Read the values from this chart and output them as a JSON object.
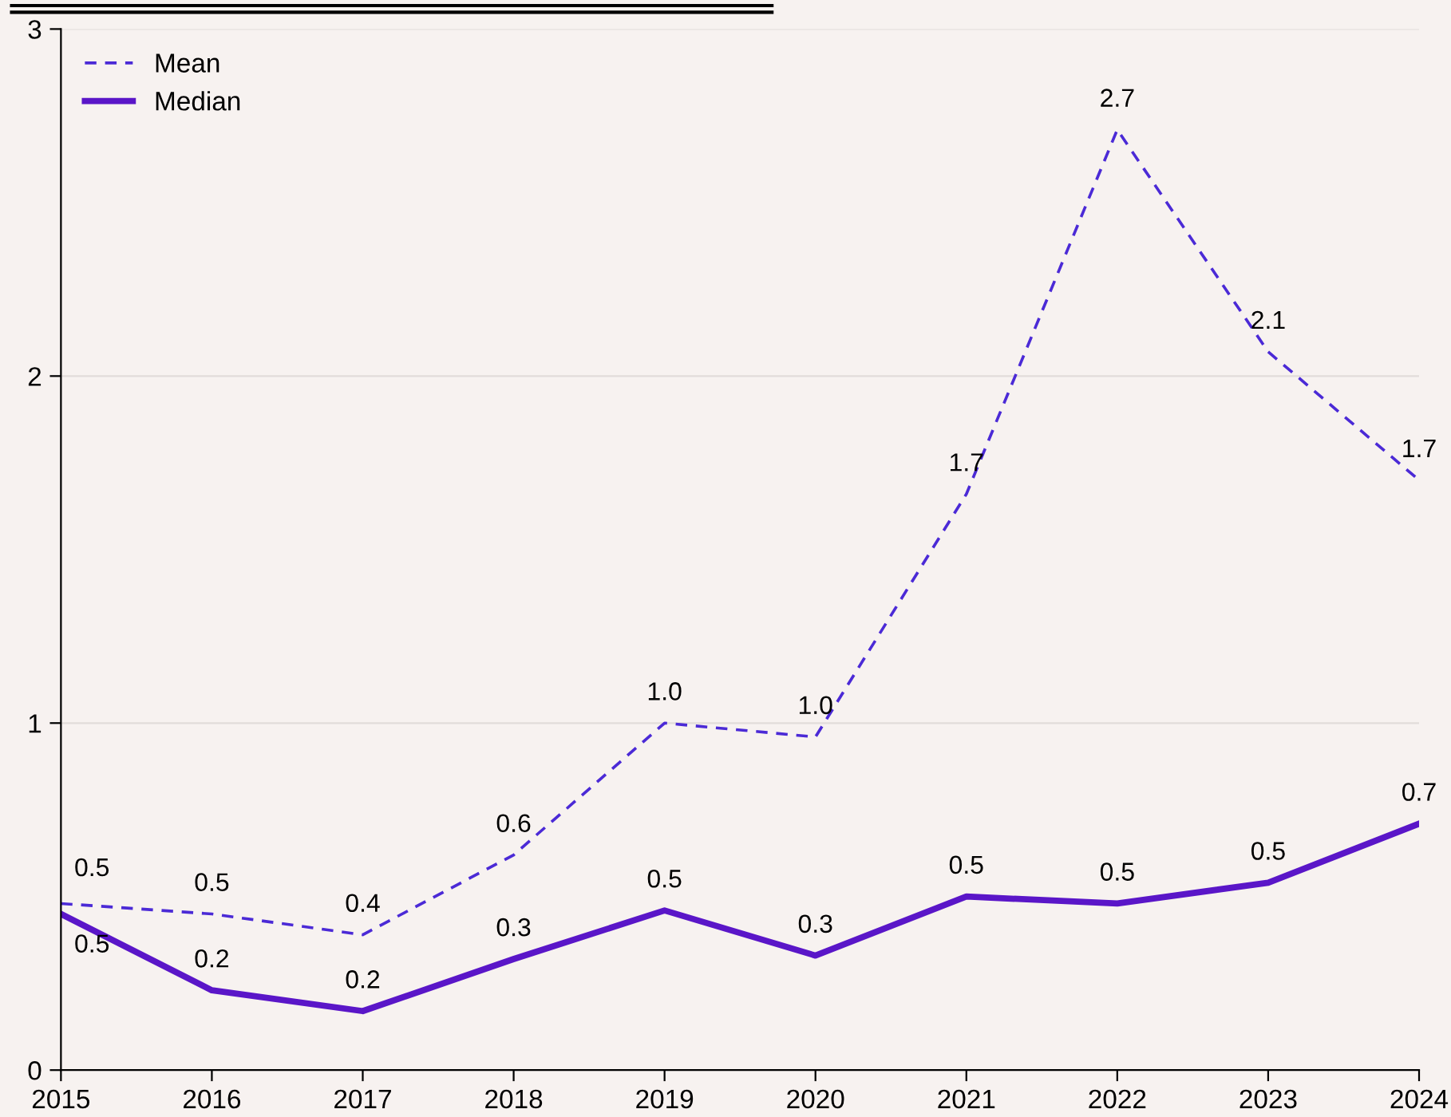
{
  "chart_data": {
    "type": "line",
    "x": [
      2015,
      2016,
      2017,
      2018,
      2019,
      2020,
      2021,
      2022,
      2023,
      2024
    ],
    "series": [
      {
        "name": "Mean",
        "color": "#4b2ad6",
        "line_style": "dashed",
        "values": [
          0.48,
          0.45,
          0.39,
          0.62,
          1.0,
          0.96,
          1.66,
          2.71,
          2.07,
          1.7
        ],
        "value_labels": [
          "0.5",
          "0.5",
          "0.4",
          "0.6",
          "1.0",
          "1.0",
          "1.7",
          "2.7",
          "2.1",
          "1.7"
        ]
      },
      {
        "name": "Median",
        "color": "#5a16c8",
        "line_style": "solid",
        "values": [
          0.45,
          0.23,
          0.17,
          0.32,
          0.46,
          0.33,
          0.5,
          0.48,
          0.54,
          0.71
        ],
        "value_labels": [
          "0.5",
          "0.2",
          "0.2",
          "0.3",
          "0.5",
          "0.3",
          "0.5",
          "0.5",
          "0.5",
          "0.7"
        ]
      }
    ],
    "xlim": [
      2015,
      2024
    ],
    "xticks": [
      2015,
      2016,
      2017,
      2018,
      2019,
      2020,
      2021,
      2022,
      2023,
      2024
    ],
    "ylim": [
      0,
      3
    ],
    "yticks": [
      0,
      1,
      2,
      3
    ],
    "grid": "y",
    "legend": "top left",
    "marker": "none"
  }
}
